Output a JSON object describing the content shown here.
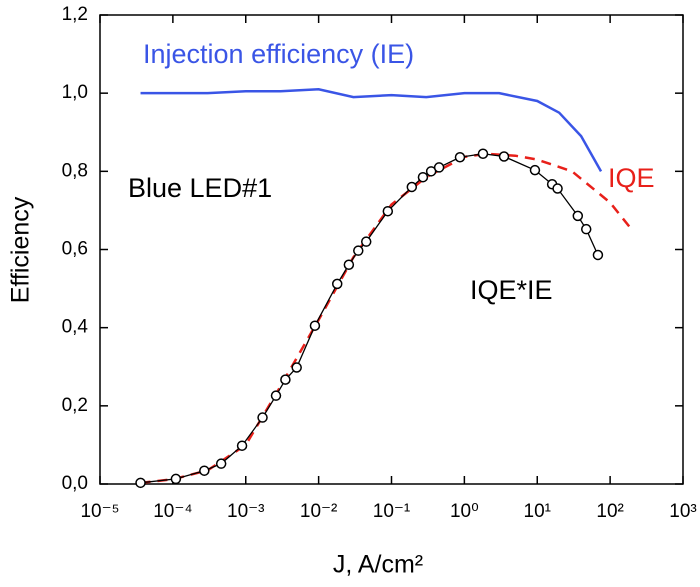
{
  "chart_data": {
    "type": "line",
    "xscale": "log",
    "xlabel": "J, A/cm²",
    "ylabel": "Efficiency",
    "xlim": [
      1e-05,
      1000
    ],
    "ylim": [
      0,
      1.2
    ],
    "xticks": [
      {
        "value": 1e-05,
        "label": "10⁻⁵"
      },
      {
        "value": 0.0001,
        "label": "10⁻⁴"
      },
      {
        "value": 0.001,
        "label": "10⁻³"
      },
      {
        "value": 0.01,
        "label": "10⁻²"
      },
      {
        "value": 0.1,
        "label": "10⁻¹"
      },
      {
        "value": 1,
        "label": "10⁰"
      },
      {
        "value": 10,
        "label": "10¹"
      },
      {
        "value": 100,
        "label": "10²"
      },
      {
        "value": 1000,
        "label": "10³"
      }
    ],
    "yticks": [
      {
        "value": 0,
        "label": "0,0"
      },
      {
        "value": 0.2,
        "label": "0,2"
      },
      {
        "value": 0.4,
        "label": "0,4"
      },
      {
        "value": 0.6,
        "label": "0,6"
      },
      {
        "value": 0.8,
        "label": "0,8"
      },
      {
        "value": 1,
        "label": "1,0"
      },
      {
        "value": 1.2,
        "label": "1,2"
      }
    ],
    "annotations": [
      {
        "text": "Injection efficiency (IE)",
        "color": "#3a55e6"
      },
      {
        "text": "IQE",
        "color": "#e8201a"
      },
      {
        "text": "Blue LED#1",
        "color": "#000000"
      },
      {
        "text": "IQE*IE",
        "color": "#000000"
      }
    ],
    "series": [
      {
        "name": "Injection efficiency (IE)",
        "color": "#3a55e6",
        "line_style": "solid",
        "marker": "none",
        "x": [
          3.6e-05,
          0.0001,
          0.0003,
          0.001,
          0.003,
          0.01,
          0.03,
          0.1,
          0.3,
          1,
          3,
          10,
          20,
          40,
          75
        ],
        "values": [
          1.0,
          1.0,
          1.0,
          1.005,
          1.005,
          1.01,
          0.99,
          0.995,
          0.99,
          1.0,
          1.0,
          0.98,
          0.95,
          0.89,
          0.8
        ]
      },
      {
        "name": "IQE",
        "color": "#e8201a",
        "line_style": "dashed",
        "marker": "none",
        "x": [
          3.6e-05,
          0.0001,
          0.0003,
          0.001,
          0.003,
          0.01,
          0.03,
          0.1,
          0.3,
          1,
          2,
          5,
          10,
          30,
          100,
          200
        ],
        "values": [
          0.003,
          0.012,
          0.035,
          0.1,
          0.25,
          0.42,
          0.58,
          0.715,
          0.785,
          0.837,
          0.845,
          0.84,
          0.83,
          0.8,
          0.72,
          0.65
        ]
      },
      {
        "name": "IQE*IE",
        "color": "#000000",
        "line_style": "solid",
        "marker": "circle",
        "x": [
          3.6e-05,
          0.00011,
          0.00027,
          0.00046,
          0.00089,
          0.0017,
          0.0026,
          0.0035,
          0.005,
          0.0089,
          0.018,
          0.026,
          0.035,
          0.045,
          0.089,
          0.19,
          0.27,
          0.35,
          0.45,
          0.87,
          1.8,
          3.5,
          9.3,
          16,
          19,
          36,
          47,
          68
        ],
        "values": [
          0.003,
          0.013,
          0.034,
          0.052,
          0.098,
          0.17,
          0.226,
          0.267,
          0.298,
          0.405,
          0.512,
          0.561,
          0.597,
          0.62,
          0.698,
          0.76,
          0.785,
          0.8,
          0.81,
          0.836,
          0.845,
          0.838,
          0.803,
          0.767,
          0.756,
          0.686,
          0.652,
          0.586
        ]
      }
    ]
  }
}
